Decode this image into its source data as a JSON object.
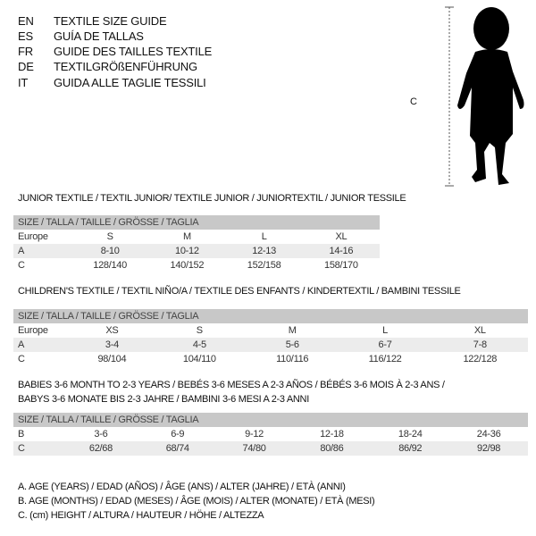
{
  "languages": [
    {
      "code": "EN",
      "label": "TEXTILE SIZE GUIDE"
    },
    {
      "code": "ES",
      "label": "GUÍA DE TALLAS"
    },
    {
      "code": "FR",
      "label": "GUIDE DES TAILLES TEXTILE"
    },
    {
      "code": "DE",
      "label": "TEXTILGRÖßENFÜHRUNG"
    },
    {
      "code": "IT",
      "label": "GUIDA ALLE TAGLIE TESSILI"
    }
  ],
  "figure": {
    "measure_label": "C",
    "icon": "child-silhouette"
  },
  "junior": {
    "title": "JUNIOR TEXTILE / TEXTIL JUNIOR/ TEXTILE JUNIOR / JUNIORTEXTIL / JUNIOR TESSILE",
    "header": "SIZE / TALLA / TAILLE / GRÖSSE / TAGLIA",
    "rows": [
      {
        "label": "Europe",
        "values": [
          "S",
          "M",
          "L",
          "XL"
        ]
      },
      {
        "label": "A",
        "values": [
          "8-10",
          "10-12",
          "12-13",
          "14-16"
        ]
      },
      {
        "label": "C",
        "values": [
          "128/140",
          "140/152",
          "152/158",
          "158/170"
        ]
      }
    ]
  },
  "children": {
    "title": "CHILDREN'S TEXTILE / TEXTIL NIÑO/A / TEXTILE DES ENFANTS / KINDERTEXTIL / BAMBINI TESSILE",
    "header": "SIZE / TALLA / TAILLE / GRÖSSE / TAGLIA",
    "rows": [
      {
        "label": "Europe",
        "values": [
          "XS",
          "S",
          "M",
          "L",
          "XL"
        ]
      },
      {
        "label": "A",
        "values": [
          "3-4",
          "4-5",
          "5-6",
          "6-7",
          "7-8"
        ]
      },
      {
        "label": "C",
        "values": [
          "98/104",
          "104/110",
          "110/116",
          "116/122",
          "122/128"
        ]
      }
    ]
  },
  "babies": {
    "title_line1": "BABIES 3-6 MONTH TO 2-3 YEARS / BEBÉS 3-6 MESES A 2-3 AÑOS / BÉBÉS 3-6 MOIS À 2-3 ANS /",
    "title_line2": "BABYS 3-6 MONATE BIS 2-3 JAHRE / BAMBINI 3-6 MESI A 2-3 ANNI",
    "header": "SIZE / TALLA / TAILLE / GRÖSSE / TAGLIA",
    "rows": [
      {
        "label": "B",
        "values": [
          "3-6",
          "6-9",
          "9-12",
          "12-18",
          "18-24",
          "24-36"
        ]
      },
      {
        "label": "C",
        "values": [
          "62/68",
          "68/74",
          "74/80",
          "80/86",
          "86/92",
          "92/98"
        ]
      }
    ]
  },
  "legend": [
    "A. AGE (YEARS) / EDAD (AÑOS) / ÂGE (ANS) / ALTER (JAHRE) / ETÀ (ANNI)",
    "B. AGE (MONTHS) / EDAD (MESES) / ÂGE (MOIS) / ALTER (MONATE) / ETÀ (MESI)",
    "C. (cm) HEIGHT / ALTURA / HAUTEUR / HÖHE / ALTEZZA"
  ]
}
